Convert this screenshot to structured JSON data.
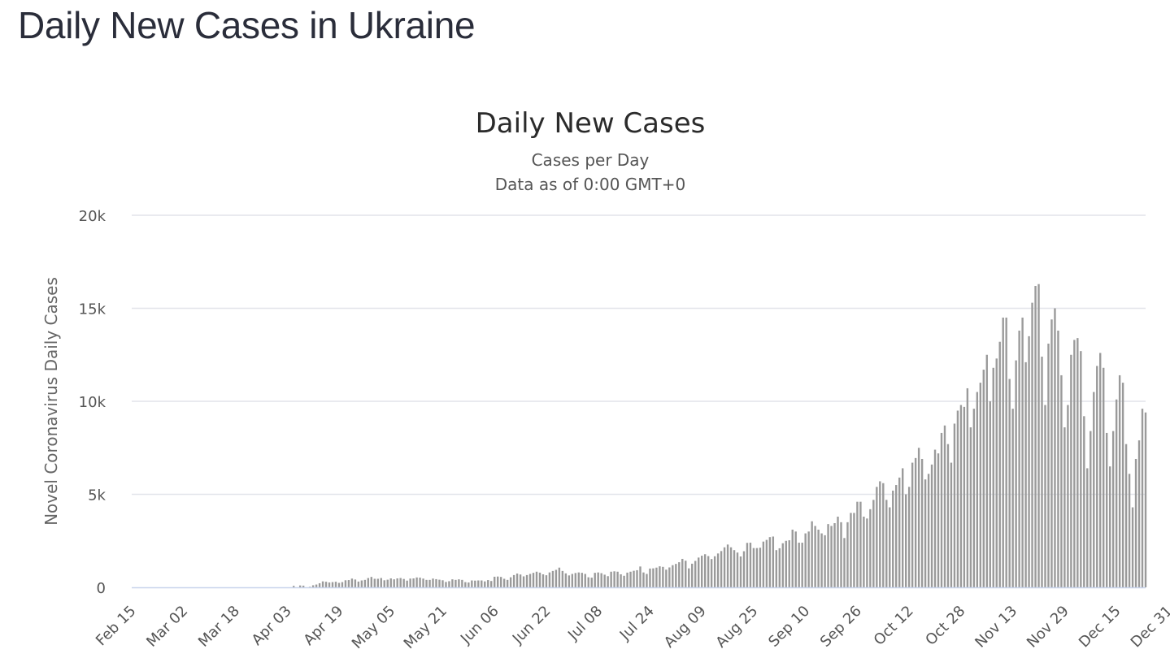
{
  "page": {
    "title": "Daily New Cases in Ukraine"
  },
  "colors": {
    "bar": "#9a9a9a",
    "grid": "#e2e4ea",
    "axis": "#c8d4ec"
  },
  "chart_data": {
    "type": "bar",
    "title": "Daily New Cases",
    "subtitle_lines": [
      "Cases per Day",
      "Data as of 0:00 GMT+0"
    ],
    "xlabel": "",
    "ylabel": "Novel Coronavirus Daily Cases",
    "ylim": [
      0,
      20000
    ],
    "yticks": [
      0,
      5000,
      10000,
      15000,
      20000
    ],
    "ytick_labels": [
      "0",
      "5k",
      "10k",
      "15k",
      "20k"
    ],
    "x_start": "Feb 15",
    "x_end": "Dec 31",
    "x_tick_labels": [
      "Feb 15",
      "Mar 02",
      "Mar 18",
      "Apr 03",
      "Apr 19",
      "May 05",
      "May 21",
      "Jun 06",
      "Jun 22",
      "Jul 08",
      "Jul 24",
      "Aug 09",
      "Aug 25",
      "Sep 10",
      "Sep 26",
      "Oct 12",
      "Oct 28",
      "Nov 13",
      "Nov 29",
      "Dec 15",
      "Dec 31"
    ],
    "x_tick_every": 16,
    "values": [
      0,
      0,
      0,
      0,
      0,
      0,
      0,
      0,
      0,
      0,
      0,
      0,
      0,
      0,
      0,
      0,
      0,
      0,
      0,
      0,
      0,
      0,
      0,
      0,
      0,
      0,
      0,
      0,
      0,
      0,
      0,
      0,
      0,
      0,
      0,
      0,
      0,
      0,
      0,
      0,
      0,
      0,
      0,
      0,
      0,
      0,
      0,
      0,
      0,
      0,
      80,
      0,
      100,
      90,
      0,
      30,
      110,
      150,
      220,
      320,
      300,
      260,
      280,
      300,
      240,
      280,
      380,
      390,
      470,
      420,
      310,
      370,
      400,
      500,
      560,
      460,
      460,
      500,
      380,
      410,
      480,
      430,
      480,
      500,
      450,
      360,
      470,
      480,
      530,
      520,
      470,
      400,
      400,
      470,
      440,
      410,
      380,
      290,
      330,
      430,
      400,
      430,
      400,
      280,
      260,
      370,
      360,
      370,
      370,
      320,
      390,
      340,
      570,
      580,
      560,
      460,
      400,
      540,
      660,
      740,
      690,
      590,
      660,
      720,
      780,
      840,
      790,
      700,
      650,
      800,
      880,
      940,
      1060,
      880,
      750,
      640,
      720,
      770,
      800,
      780,
      720,
      540,
      520,
      780,
      800,
      760,
      680,
      600,
      840,
      860,
      840,
      700,
      620,
      790,
      840,
      890,
      920,
      1120,
      800,
      720,
      1010,
      1020,
      1060,
      1130,
      1100,
      950,
      1070,
      1190,
      1260,
      1350,
      1530,
      1430,
      1020,
      1270,
      1420,
      1600,
      1700,
      1780,
      1680,
      1520,
      1670,
      1820,
      1950,
      2150,
      2300,
      2150,
      2000,
      1870,
      1660,
      1940,
      2390,
      2400,
      2110,
      2110,
      2130,
      2460,
      2550,
      2700,
      2730,
      2000,
      2100,
      2370,
      2500,
      2530,
      3100,
      3000,
      2400,
      2400,
      2900,
      3000,
      3550,
      3300,
      3100,
      2900,
      2800,
      3400,
      3300,
      3450,
      3800,
      3500,
      2650,
      3500,
      4000,
      4000,
      4600,
      4600,
      3800,
      3700,
      4200,
      4700,
      5400,
      5700,
      5600,
      4700,
      4300,
      5200,
      5500,
      5900,
      6400,
      5000,
      5400,
      6700,
      6950,
      7500,
      6900,
      5800,
      6100,
      6600,
      7400,
      7200,
      8300,
      8700,
      7700,
      6700,
      8800,
      9500,
      9800,
      9700,
      10700,
      8600,
      9600,
      10500,
      11000,
      11700,
      12500,
      10000,
      11800,
      12300,
      13200,
      14500,
      14500,
      11200,
      9600,
      12200,
      13800,
      14500,
      12100,
      13500,
      15300,
      16200,
      16300,
      12400,
      9800,
      13100,
      14400,
      15000,
      13800,
      11400,
      8600,
      9800,
      12500,
      13300,
      13400,
      12700,
      9200,
      6400,
      8400,
      10500,
      11900,
      12600,
      11800,
      8300,
      6500,
      8400,
      10100,
      11400,
      11000,
      7700,
      6100,
      4300,
      6900,
      7900,
      9600,
      9400
    ]
  }
}
